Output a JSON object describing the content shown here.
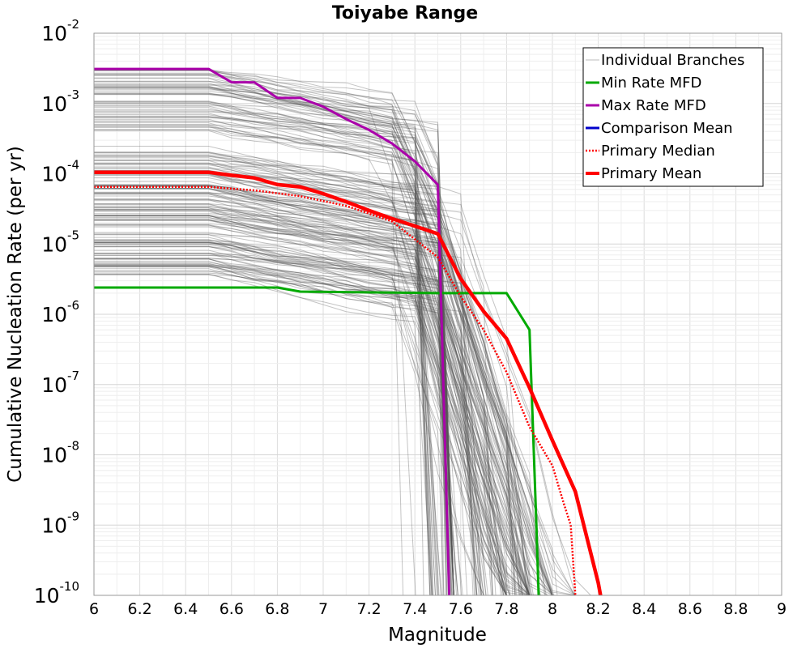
{
  "chart_data": {
    "type": "line",
    "title": "Toiyabe Range",
    "xlabel": "Magnitude",
    "ylabel": "Cumulative Nucleation Rate (per yr)",
    "xlim": [
      6,
      9
    ],
    "ylim": [
      1e-10,
      0.01
    ],
    "yscale": "log",
    "grid": true,
    "legend_position": "top-right",
    "x_ticks": [
      "6",
      "6.2",
      "6.4",
      "6.6",
      "6.8",
      "7",
      "7.2",
      "7.4",
      "7.6",
      "7.8",
      "8",
      "8.2",
      "8.4",
      "8.6",
      "8.8",
      "9"
    ],
    "y_ticks": [
      {
        "value": 1e-10,
        "base": "10",
        "exp": "-10"
      },
      {
        "value": 1e-09,
        "base": "10",
        "exp": "-9"
      },
      {
        "value": 1e-08,
        "base": "10",
        "exp": "-8"
      },
      {
        "value": 1e-07,
        "base": "10",
        "exp": "-7"
      },
      {
        "value": 1e-06,
        "base": "10",
        "exp": "-6"
      },
      {
        "value": 1e-05,
        "base": "10",
        "exp": "-5"
      },
      {
        "value": 0.0001,
        "base": "10",
        "exp": "-4"
      },
      {
        "value": 0.001,
        "base": "10",
        "exp": "-3"
      },
      {
        "value": 0.01,
        "base": "10",
        "exp": "-2"
      }
    ],
    "series": [
      {
        "name": "Individual Branches",
        "color": "#555555",
        "style": "thin",
        "branch_families": [
          {
            "rate_min": 0.0004,
            "rate_max": 0.0032,
            "flat_until": 6.5,
            "knee_mag": 7.4,
            "knee_frac": 0.2,
            "max_mag": 7.55,
            "count": 60
          },
          {
            "rate_min": 3.5e-06,
            "rate_max": 0.00025,
            "flat_until": 6.5,
            "knee_mag": 7.5,
            "knee_frac": 0.12,
            "max_mag": 8.2,
            "count": 140
          }
        ]
      },
      {
        "name": "Min Rate MFD",
        "color": "#00aa00",
        "x": [
          6.0,
          6.8,
          6.9,
          7.5,
          7.8,
          7.9,
          7.93,
          7.94
        ],
        "y": [
          2.4e-06,
          2.4e-06,
          2.1e-06,
          2e-06,
          2e-06,
          6e-07,
          1e-09,
          1e-10
        ]
      },
      {
        "name": "Max Rate MFD",
        "color": "#aa00aa",
        "x": [
          6.0,
          6.5,
          6.6,
          6.7,
          6.8,
          6.9,
          7.0,
          7.1,
          7.2,
          7.3,
          7.4,
          7.5,
          7.55
        ],
        "y": [
          0.0031,
          0.0031,
          0.002,
          0.002,
          0.0012,
          0.0012,
          0.0009,
          0.0006,
          0.00042,
          0.00027,
          0.00015,
          7e-05,
          1e-10
        ]
      },
      {
        "name": "Comparison Mean",
        "color": "#0000cc",
        "x": [],
        "y": []
      },
      {
        "name": "Primary Median",
        "color": "#ff0000",
        "style": "dotted",
        "x": [
          6.0,
          6.5,
          6.7,
          6.9,
          7.1,
          7.3,
          7.5,
          7.6,
          7.7,
          7.8,
          7.9,
          8.0,
          8.05,
          8.08,
          8.1
        ],
        "y": [
          6.5e-05,
          6.5e-05,
          5.8e-05,
          4.8e-05,
          3.5e-05,
          2.1e-05,
          6.5e-06,
          1.8e-06,
          6e-07,
          1.5e-07,
          2.5e-08,
          7e-09,
          2e-09,
          1e-09,
          1e-10
        ]
      },
      {
        "name": "Primary Mean",
        "color": "#ff0000",
        "x": [
          6.0,
          6.5,
          6.6,
          6.7,
          6.8,
          6.9,
          7.0,
          7.1,
          7.2,
          7.3,
          7.4,
          7.5,
          7.6,
          7.7,
          7.8,
          7.9,
          8.0,
          8.1,
          8.2,
          8.21
        ],
        "y": [
          0.000105,
          0.000105,
          9.5e-05,
          8.7e-05,
          7e-05,
          6.5e-05,
          5.2e-05,
          4e-05,
          3e-05,
          2.3e-05,
          1.8e-05,
          1.4e-05,
          3.2e-06,
          1.1e-06,
          4.5e-07,
          9e-08,
          1.6e-08,
          3e-09,
          1.5e-10,
          1e-10
        ]
      }
    ],
    "legend": [
      {
        "label": "Individual Branches",
        "color": "#bbbbbb",
        "style": "thin"
      },
      {
        "label": "Min Rate MFD",
        "color": "#00aa00",
        "style": "solid"
      },
      {
        "label": "Max Rate MFD",
        "color": "#aa00aa",
        "style": "solid"
      },
      {
        "label": "Comparison Mean",
        "color": "#0000cc",
        "style": "solid"
      },
      {
        "label": " Primary Median",
        "color": "#ff0000",
        "style": "dotted"
      },
      {
        "label": "Primary Mean",
        "color": "#ff0000",
        "style": "thick"
      }
    ]
  }
}
